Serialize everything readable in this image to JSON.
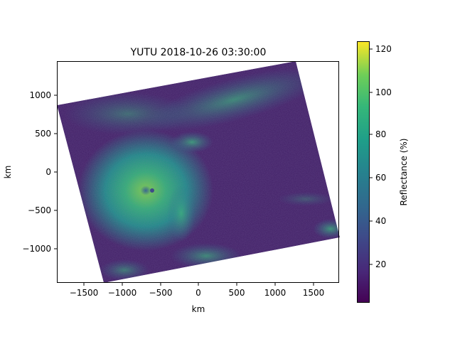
{
  "title": "YUTU 2018-10-26 03:30:00",
  "xlabel": "km",
  "ylabel": "km",
  "x_ticks": [
    "−1500",
    "−1000",
    "−500",
    "0",
    "500",
    "1000",
    "1500"
  ],
  "y_ticks": [
    "1000",
    "500",
    "0",
    "−500",
    "−1000"
  ],
  "colorbar": {
    "label": "Reflectance (%)",
    "ticks": [
      "120",
      "100",
      "80",
      "60",
      "40",
      "20"
    ],
    "colormap": "viridis",
    "range": [
      2,
      123
    ]
  },
  "colors": {
    "viridis_low": "#440154",
    "viridis_mid": "#21918c",
    "viridis_high": "#fde725"
  }
}
